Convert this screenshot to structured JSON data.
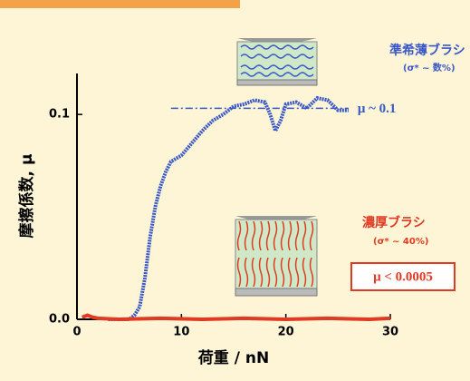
{
  "chart_data": {
    "type": "line",
    "xlabel": "荷重 / nN",
    "ylabel": "摩擦係数, μ",
    "xlim": [
      0,
      30
    ],
    "ylim": [
      0,
      0.12
    ],
    "xticks": [
      0,
      10,
      20,
      30
    ],
    "yticks": [
      {
        "value": 0,
        "label": "0.0"
      },
      0.1
    ],
    "series": [
      {
        "name": "準希薄ブラシ",
        "subtitle": "(σ* ~ 数%)",
        "color": "#3a58c8",
        "x": [
          3,
          4,
          5,
          5.5,
          6,
          6.5,
          7,
          7.5,
          8,
          8.5,
          9,
          10,
          11,
          12,
          13,
          14,
          15,
          16,
          17,
          18,
          18.5,
          19,
          19.5,
          20,
          21,
          22,
          23,
          24,
          25,
          26
        ],
        "values": [
          0,
          0,
          0,
          0.002,
          0.006,
          0.02,
          0.04,
          0.055,
          0.065,
          0.072,
          0.077,
          0.08,
          0.086,
          0.092,
          0.097,
          0.1,
          0.104,
          0.105,
          0.107,
          0.106,
          0.1,
          0.092,
          0.097,
          0.105,
          0.106,
          0.103,
          0.108,
          0.107,
          0.102,
          0.102
        ]
      },
      {
        "name": "濃厚ブラシ",
        "subtitle": "(σ* ~ 40%)",
        "color": "#e03a22",
        "x": [
          0.5,
          1,
          1.5,
          2,
          4,
          8,
          12,
          16,
          20,
          24,
          28,
          30
        ],
        "values": [
          0.001,
          0.002,
          0.001,
          0.0005,
          0,
          0.0005,
          0,
          0.0005,
          0,
          0.0005,
          0,
          0.0005
        ]
      }
    ],
    "reference_line": {
      "y": 0.103,
      "x": [
        9,
        26
      ],
      "label": "μ ~ 0.1"
    },
    "annotation": "μ < 0.0005"
  }
}
